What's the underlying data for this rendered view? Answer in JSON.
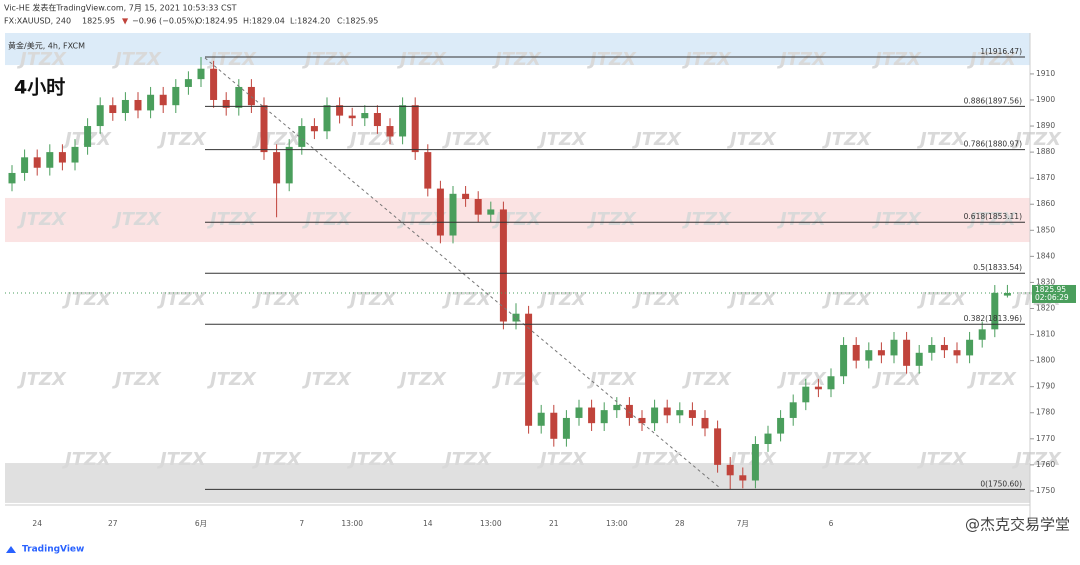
{
  "header": {
    "publisher": "Vic-HE 发表在TradingView.com, 7月 15, 2021 10:53:33 CST",
    "symbol": "FX:XAUUSD, 240",
    "last": "1825.95",
    "change": "−0.96 (−0.05%)",
    "ohlc": [
      "O:1824.95",
      "H:1829.04",
      "L:1824.20",
      "C:1825.95"
    ],
    "instrument": "黄金/美元, 4h, FXCM"
  },
  "timeframe_label": "4小时",
  "watermark": "JTZX",
  "credit": "@杰克交易学堂",
  "brand": "TradingView",
  "chart_data": {
    "type": "candlestick",
    "categories": [
      null,
      null,
      "24",
      null,
      null,
      null,
      null,
      null,
      "27",
      null,
      null,
      null,
      null,
      null,
      null,
      "6月",
      null,
      null,
      null,
      null,
      null,
      null,
      null,
      "7",
      null,
      null,
      null,
      "13:00",
      null,
      null,
      null,
      null,
      null,
      "14",
      null,
      null,
      null,
      null,
      "13:00",
      null,
      null,
      null,
      null,
      "21",
      null,
      null,
      null,
      null,
      "13:00",
      null,
      null,
      null,
      null,
      "28",
      null,
      null,
      null,
      null,
      "7月",
      null,
      null,
      null,
      null,
      null,
      null,
      "6",
      null,
      null,
      null,
      null,
      null,
      null,
      null,
      null,
      null,
      null,
      null,
      null,
      null,
      null
    ],
    "open": [
      1868,
      1872,
      1878,
      1874,
      1880,
      1876,
      1882,
      1890,
      1898,
      1895,
      1900,
      1896,
      1902,
      1898,
      1905,
      1908,
      1912,
      1900,
      1897,
      1905,
      1898,
      1880,
      1868,
      1882,
      1890,
      1888,
      1898,
      1894,
      1893,
      1895,
      1890,
      1886,
      1898,
      1880,
      1866,
      1848,
      1864,
      1862,
      1856,
      1858,
      1815,
      1818,
      1775,
      1780,
      1770,
      1778,
      1782,
      1776,
      1781,
      1783,
      1778,
      1776,
      1782,
      1779,
      1781,
      1778,
      1774,
      1760,
      1756,
      1754,
      1768,
      1772,
      1778,
      1784,
      1790,
      1789,
      1794,
      1806,
      1800,
      1804,
      1802,
      1808,
      1798,
      1803,
      1806,
      1804,
      1802,
      1808,
      1812,
      1824.95
    ],
    "high": [
      1875,
      1881,
      1881,
      1883,
      1883,
      1885,
      1893,
      1901,
      1901,
      1903,
      1903,
      1905,
      1905,
      1908,
      1911,
      1916.47,
      1915,
      1903,
      1908,
      1908,
      1901,
      1883,
      1885,
      1893,
      1893,
      1901,
      1901,
      1897,
      1898,
      1898,
      1893,
      1901,
      1901,
      1883,
      1869,
      1867,
      1867,
      1865,
      1861,
      1861,
      1822,
      1821,
      1783,
      1783,
      1781,
      1785,
      1785,
      1784,
      1786,
      1786,
      1781,
      1785,
      1785,
      1784,
      1784,
      1781,
      1777,
      1763,
      1759,
      1771,
      1775,
      1781,
      1787,
      1793,
      1793,
      1797,
      1809,
      1809,
      1807,
      1807,
      1811,
      1811,
      1806,
      1809,
      1809,
      1807,
      1811,
      1815,
      1829,
      1829.04
    ],
    "low": [
      1865,
      1869,
      1871,
      1871,
      1873,
      1873,
      1879,
      1887,
      1892,
      1892,
      1893,
      1893,
      1895,
      1895,
      1902,
      1905,
      1897,
      1894,
      1894,
      1895,
      1877,
      1855,
      1865,
      1879,
      1885,
      1885,
      1891,
      1890,
      1890,
      1887,
      1883,
      1883,
      1877,
      1863,
      1845,
      1845,
      1859,
      1853,
      1853,
      1812,
      1812,
      1772,
      1772,
      1767,
      1767,
      1775,
      1773,
      1773,
      1778,
      1775,
      1773,
      1773,
      1776,
      1776,
      1775,
      1771,
      1757,
      1750.6,
      1751,
      1751,
      1765,
      1769,
      1775,
      1781,
      1786,
      1786,
      1791,
      1797,
      1797,
      1799,
      1799,
      1795,
      1795,
      1800,
      1801,
      1799,
      1799,
      1805,
      1809,
      1824.2
    ],
    "close": [
      1872,
      1878,
      1874,
      1880,
      1876,
      1882,
      1890,
      1898,
      1895,
      1900,
      1896,
      1902,
      1898,
      1905,
      1908,
      1912,
      1900,
      1897,
      1905,
      1898,
      1880,
      1868,
      1882,
      1890,
      1888,
      1898,
      1894,
      1893,
      1895,
      1890,
      1886,
      1898,
      1880,
      1866,
      1848,
      1864,
      1862,
      1856,
      1858,
      1815,
      1818,
      1775,
      1780,
      1770,
      1778,
      1782,
      1776,
      1781,
      1783,
      1778,
      1776,
      1782,
      1779,
      1781,
      1778,
      1774,
      1760,
      1756,
      1754,
      1768,
      1772,
      1778,
      1784,
      1790,
      1789,
      1794,
      1806,
      1800,
      1804,
      1802,
      1808,
      1798,
      1803,
      1806,
      1804,
      1802,
      1808,
      1812,
      1826,
      1825.95
    ],
    "up_color": "#4a9e5c",
    "down_color": "#c0433b",
    "ylim": [
      1744.6,
      1925.7
    ],
    "yticks": [
      1750,
      1760,
      1770,
      1780,
      1790,
      1800,
      1810,
      1820,
      1830,
      1840,
      1850,
      1860,
      1870,
      1880,
      1890,
      1900,
      1910
    ],
    "fib_levels": [
      {
        "value": 1916.47,
        "label": "1(1916.47)"
      },
      {
        "value": 1897.56,
        "label": "0.886(1897.56)"
      },
      {
        "value": 1880.97,
        "label": "0.786(1880.97)"
      },
      {
        "value": 1853.11,
        "label": "0.618(1853.11)"
      },
      {
        "value": 1833.54,
        "label": "0.5(1833.54)"
      },
      {
        "value": 1813.96,
        "label": "0.382(1813.96)"
      },
      {
        "value": 1750.6,
        "label": "0(1750.60)"
      }
    ],
    "zones": [
      {
        "from": 1913.4,
        "to": 1925.7,
        "color": "#dcebf8"
      },
      {
        "from": 1845.5,
        "to": 1862.4,
        "color": "#fbe3e3"
      },
      {
        "from": 1745.4,
        "to": 1760.7,
        "color": "#e0e0e0"
      }
    ],
    "last_price_label": "1825.95",
    "countdown": "02:06:29",
    "last_price_color": "#4a9e5c"
  }
}
